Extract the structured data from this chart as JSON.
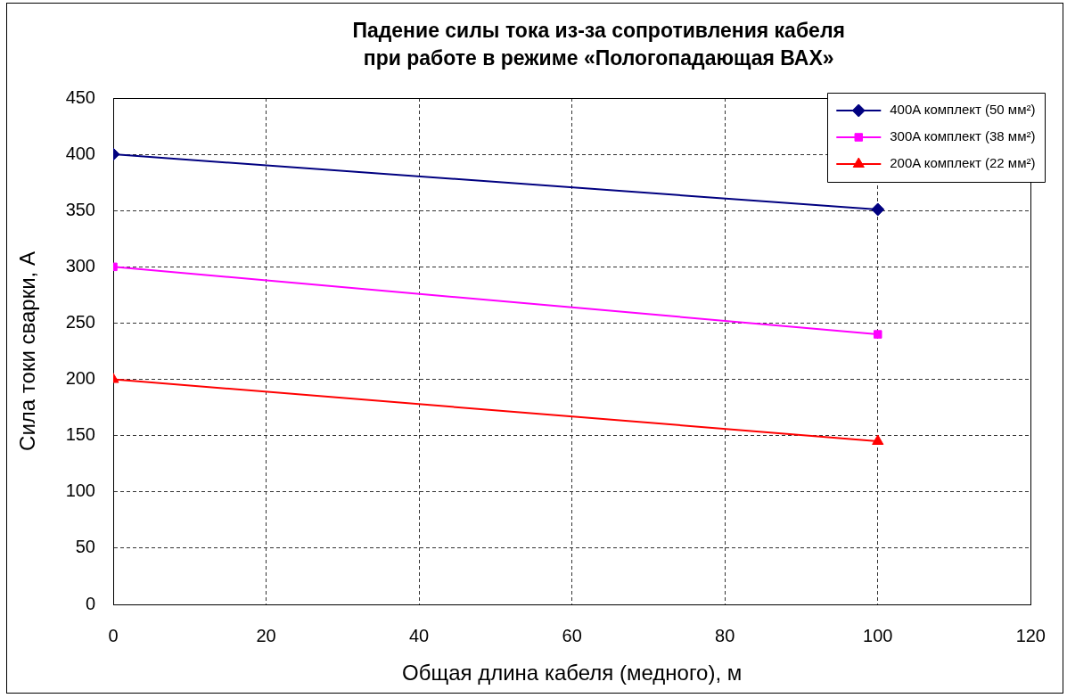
{
  "chart_data": {
    "type": "line",
    "title": "Падение силы тока из-за сопротивления кабеля\nпри работе в режиме «Пологопадающая ВАХ»",
    "xlabel": "Общая длина кабеля (медного), м",
    "ylabel": "Сила токи сварки, А",
    "x": [
      0,
      100
    ],
    "xlim": [
      0,
      120
    ],
    "xticks": [
      0,
      20,
      40,
      60,
      80,
      100,
      120
    ],
    "ylim": [
      0,
      450
    ],
    "yticks": [
      0,
      50,
      100,
      150,
      200,
      250,
      300,
      350,
      400,
      450
    ],
    "grid": true,
    "legend": "top right",
    "series": [
      {
        "name": "400A комплект (50 мм²)",
        "color": "#000080",
        "marker": "diamond",
        "values": [
          400,
          351
        ]
      },
      {
        "name": "300A комплект (38 мм²)",
        "color": "#ff00ff",
        "marker": "square",
        "values": [
          300,
          240
        ]
      },
      {
        "name": "200A комплект (22 мм²)",
        "color": "#ff0000",
        "marker": "triangle",
        "values": [
          200,
          145
        ]
      }
    ]
  }
}
